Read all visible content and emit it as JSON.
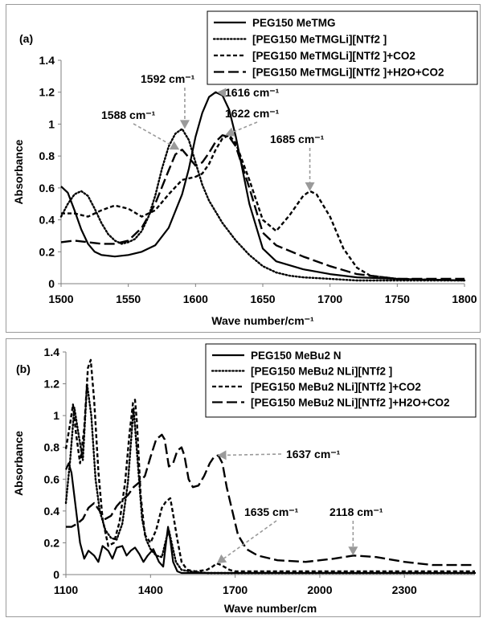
{
  "chart_data": [
    {
      "type": "line",
      "panel_label": "(a)",
      "xlabel": "Wave number/cm⁻¹",
      "ylabel": "Absorbance",
      "xlim": [
        1500,
        1800
      ],
      "ylim": [
        0,
        1.4
      ],
      "x_ticks": [
        "1500",
        "1550",
        "1600",
        "1650",
        "1700",
        "1750",
        "1800"
      ],
      "y_ticks": [
        "0",
        "0.2",
        "0.4",
        "0.6",
        "0.8",
        "1",
        "1.2",
        "1.4"
      ],
      "legend_position": "top-right",
      "series": [
        {
          "name": "PEG150 MeTMG",
          "style": "solid",
          "x": [
            1500,
            1505,
            1510,
            1515,
            1520,
            1525,
            1530,
            1540,
            1550,
            1560,
            1570,
            1580,
            1590,
            1595,
            1600,
            1605,
            1610,
            1615,
            1620,
            1625,
            1630,
            1640,
            1650,
            1660,
            1680,
            1700,
            1720,
            1750,
            1800
          ],
          "y": [
            0.61,
            0.57,
            0.46,
            0.34,
            0.25,
            0.2,
            0.18,
            0.17,
            0.18,
            0.2,
            0.24,
            0.35,
            0.56,
            0.72,
            0.92,
            1.07,
            1.17,
            1.2,
            1.18,
            1.09,
            0.92,
            0.5,
            0.22,
            0.14,
            0.09,
            0.06,
            0.04,
            0.03,
            0.02
          ]
        },
        {
          "name": "[PEG150 MeTMGLi][NTf2 ]",
          "style": "dotted",
          "x": [
            1500,
            1505,
            1510,
            1515,
            1520,
            1525,
            1530,
            1535,
            1540,
            1545,
            1550,
            1555,
            1560,
            1565,
            1570,
            1575,
            1580,
            1585,
            1590,
            1595,
            1600,
            1605,
            1610,
            1620,
            1630,
            1640,
            1650,
            1660,
            1670,
            1680,
            1700,
            1720,
            1750,
            1800
          ],
          "y": [
            0.42,
            0.5,
            0.56,
            0.58,
            0.55,
            0.47,
            0.38,
            0.31,
            0.27,
            0.25,
            0.26,
            0.28,
            0.33,
            0.42,
            0.55,
            0.72,
            0.86,
            0.94,
            0.97,
            0.9,
            0.76,
            0.62,
            0.52,
            0.38,
            0.27,
            0.18,
            0.11,
            0.07,
            0.05,
            0.04,
            0.03,
            0.02,
            0.02,
            0.02
          ]
        },
        {
          "name": "[PEG150 MeTMGLi][NTf2 ]+CO2",
          "style": "dashed",
          "x": [
            1500,
            1510,
            1520,
            1530,
            1540,
            1550,
            1560,
            1570,
            1580,
            1590,
            1600,
            1605,
            1610,
            1615,
            1620,
            1625,
            1630,
            1640,
            1650,
            1660,
            1670,
            1680,
            1685,
            1690,
            1700,
            1710,
            1720,
            1730,
            1750,
            1800
          ],
          "y": [
            0.44,
            0.44,
            0.42,
            0.46,
            0.49,
            0.47,
            0.42,
            0.46,
            0.56,
            0.65,
            0.67,
            0.69,
            0.75,
            0.84,
            0.91,
            0.93,
            0.88,
            0.65,
            0.4,
            0.33,
            0.43,
            0.55,
            0.58,
            0.56,
            0.42,
            0.22,
            0.1,
            0.05,
            0.03,
            0.02
          ]
        },
        {
          "name": "[PEG150 MeTMGLi][NTf2 ]+H2O+CO2",
          "style": "longdash",
          "x": [
            1500,
            1510,
            1520,
            1530,
            1540,
            1550,
            1560,
            1570,
            1580,
            1585,
            1590,
            1595,
            1600,
            1605,
            1610,
            1615,
            1620,
            1625,
            1630,
            1640,
            1650,
            1660,
            1680,
            1700,
            1720,
            1750,
            1800
          ],
          "y": [
            0.26,
            0.27,
            0.26,
            0.25,
            0.25,
            0.27,
            0.35,
            0.5,
            0.71,
            0.81,
            0.84,
            0.79,
            0.74,
            0.76,
            0.82,
            0.89,
            0.93,
            0.92,
            0.86,
            0.6,
            0.32,
            0.24,
            0.17,
            0.11,
            0.06,
            0.03,
            0.03
          ]
        }
      ],
      "annotations": [
        {
          "text": "1592 cm⁻¹",
          "x": 1592,
          "y": 0.97
        },
        {
          "text": "1616 cm⁻¹",
          "x": 1616,
          "y": 1.2
        },
        {
          "text": "1588 cm⁻¹",
          "x": 1588,
          "y": 0.84
        },
        {
          "text": "1622 cm⁻¹",
          "x": 1622,
          "y": 0.93
        },
        {
          "text": "1685 cm⁻¹",
          "x": 1685,
          "y": 0.58
        }
      ]
    },
    {
      "type": "line",
      "panel_label": "(b)",
      "xlabel": "Wave number/cm",
      "ylabel": "Absorbance",
      "xlim": [
        1100,
        2550
      ],
      "ylim": [
        0,
        1.4
      ],
      "x_ticks": [
        "1100",
        "1400",
        "1700",
        "2000",
        "2300"
      ],
      "x_tick_values": [
        1100,
        1400,
        1700,
        2000,
        2300
      ],
      "y_ticks": [
        "0",
        "0.2",
        "0.4",
        "0.6",
        "0.8",
        "1",
        "1.2",
        "1.4"
      ],
      "legend_position": "top-right",
      "series": [
        {
          "name": "PEG150 MeBu2 N",
          "style": "solid",
          "x": [
            1100,
            1110,
            1120,
            1135,
            1150,
            1165,
            1180,
            1200,
            1215,
            1230,
            1250,
            1265,
            1280,
            1300,
            1315,
            1330,
            1345,
            1360,
            1375,
            1390,
            1410,
            1430,
            1445,
            1455,
            1462,
            1470,
            1480,
            1495,
            1510,
            1530,
            1600,
            1800,
            2550
          ],
          "y": [
            0.66,
            0.7,
            0.64,
            0.42,
            0.2,
            0.1,
            0.15,
            0.12,
            0.08,
            0.18,
            0.15,
            0.1,
            0.17,
            0.18,
            0.12,
            0.15,
            0.17,
            0.13,
            0.08,
            0.12,
            0.16,
            0.08,
            0.05,
            0.2,
            0.3,
            0.22,
            0.08,
            0.02,
            0.01,
            0.01,
            0.01,
            0.01,
            0.01
          ]
        },
        {
          "name": "[PEG150 MeBu2 NLi][NTf2 ]",
          "style": "dotted",
          "x": [
            1100,
            1115,
            1130,
            1145,
            1160,
            1175,
            1190,
            1205,
            1220,
            1240,
            1260,
            1280,
            1300,
            1320,
            1340,
            1355,
            1370,
            1385,
            1400,
            1420,
            1440,
            1455,
            1465,
            1475,
            1490,
            1510,
            1540,
            1600,
            1800,
            2550
          ],
          "y": [
            0.45,
            0.72,
            1.05,
            0.88,
            0.72,
            1.2,
            1.0,
            0.6,
            0.4,
            0.28,
            0.23,
            0.22,
            0.32,
            0.58,
            1.05,
            0.7,
            0.35,
            0.22,
            0.16,
            0.12,
            0.11,
            0.22,
            0.28,
            0.2,
            0.08,
            0.03,
            0.02,
            0.01,
            0.01,
            0.01
          ]
        },
        {
          "name": "[PEG150 MeBu2 NLi][NTf2 ]+CO2",
          "style": "dashed",
          "x": [
            1100,
            1115,
            1125,
            1135,
            1150,
            1165,
            1178,
            1188,
            1200,
            1215,
            1230,
            1250,
            1270,
            1290,
            1310,
            1325,
            1338,
            1345,
            1352,
            1365,
            1380,
            1400,
            1420,
            1440,
            1455,
            1470,
            1480,
            1495,
            1510,
            1530,
            1560,
            1600,
            1620,
            1635,
            1650,
            1680,
            1700,
            1800,
            1900,
            2000,
            2100,
            2200,
            2300,
            2400,
            2550
          ],
          "y": [
            0.79,
            0.95,
            1.07,
            0.9,
            0.7,
            0.92,
            1.3,
            1.35,
            1.1,
            0.65,
            0.35,
            0.18,
            0.2,
            0.33,
            0.58,
            0.88,
            1.08,
            1.1,
            0.95,
            0.5,
            0.25,
            0.2,
            0.28,
            0.42,
            0.46,
            0.48,
            0.38,
            0.22,
            0.08,
            0.03,
            0.02,
            0.03,
            0.05,
            0.07,
            0.06,
            0.03,
            0.02,
            0.02,
            0.02,
            0.02,
            0.02,
            0.02,
            0.02,
            0.02,
            0.02
          ]
        },
        {
          "name": "[PEG150 MeBu2 NLi][NTf2 ]+H2O+CO2",
          "style": "longdash",
          "x": [
            1100,
            1120,
            1140,
            1160,
            1180,
            1200,
            1220,
            1240,
            1260,
            1280,
            1300,
            1320,
            1340,
            1360,
            1380,
            1400,
            1420,
            1440,
            1450,
            1465,
            1480,
            1495,
            1510,
            1520,
            1535,
            1550,
            1570,
            1590,
            1610,
            1625,
            1640,
            1655,
            1670,
            1690,
            1710,
            1740,
            1780,
            1850,
            1950,
            2050,
            2120,
            2200,
            2300,
            2400,
            2550
          ],
          "y": [
            0.3,
            0.3,
            0.32,
            0.35,
            0.42,
            0.45,
            0.4,
            0.35,
            0.37,
            0.43,
            0.47,
            0.5,
            0.55,
            0.58,
            0.62,
            0.74,
            0.85,
            0.88,
            0.85,
            0.68,
            0.7,
            0.78,
            0.8,
            0.75,
            0.6,
            0.55,
            0.56,
            0.62,
            0.7,
            0.74,
            0.75,
            0.7,
            0.55,
            0.4,
            0.25,
            0.16,
            0.12,
            0.09,
            0.08,
            0.1,
            0.12,
            0.11,
            0.08,
            0.06,
            0.06
          ]
        }
      ],
      "annotations": [
        {
          "text": "1637 cm⁻¹",
          "x": 1637,
          "y": 0.75
        },
        {
          "text": "1635 cm⁻¹",
          "x": 1635,
          "y": 0.07
        },
        {
          "text": "2118 cm⁻¹",
          "x": 2118,
          "y": 0.12
        }
      ]
    }
  ]
}
